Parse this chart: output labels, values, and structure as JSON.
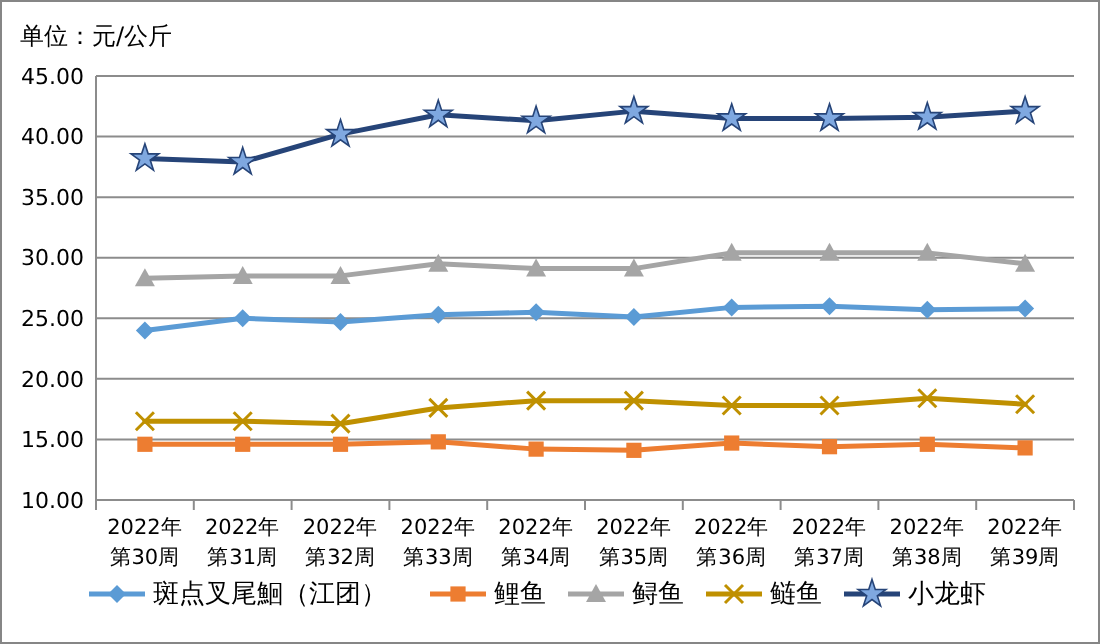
{
  "chart_data": {
    "type": "line",
    "title": "单位：元/公斤",
    "categories": [
      "2022年第30周",
      "2022年第31周",
      "2022年第32周",
      "2022年第33周",
      "2022年第34周",
      "2022年第35周",
      "2022年第36周",
      "2022年第37周",
      "2022年第38周",
      "2022年第39周"
    ],
    "series": [
      {
        "name": "斑点叉尾鮰（江团）",
        "color": "#5b9bd5",
        "marker": "diamond",
        "values": [
          24.0,
          25.0,
          24.7,
          25.3,
          25.5,
          25.1,
          25.9,
          26.0,
          25.7,
          25.8
        ]
      },
      {
        "name": "鲤鱼",
        "color": "#ed7d31",
        "marker": "square",
        "values": [
          14.6,
          14.6,
          14.6,
          14.8,
          14.2,
          14.1,
          14.7,
          14.4,
          14.6,
          14.3
        ]
      },
      {
        "name": "鲟鱼",
        "color": "#a5a5a5",
        "marker": "triangle",
        "values": [
          28.3,
          28.5,
          28.5,
          29.5,
          29.1,
          29.1,
          30.4,
          30.4,
          30.4,
          29.5
        ]
      },
      {
        "name": "鲢鱼",
        "color": "#bf9000",
        "marker": "cross",
        "values": [
          16.5,
          16.5,
          16.3,
          17.6,
          18.2,
          18.2,
          17.8,
          17.8,
          18.4,
          17.9
        ]
      },
      {
        "name": "小龙虾",
        "color": "#264478",
        "marker": "star",
        "values": [
          38.2,
          37.9,
          40.2,
          41.8,
          41.3,
          42.1,
          41.5,
          41.5,
          41.6,
          42.1
        ]
      }
    ],
    "ylim": [
      10,
      45
    ],
    "yticks": [
      {
        "value": 10,
        "label": "10.00"
      },
      {
        "value": 15,
        "label": "15.00"
      },
      {
        "value": 20,
        "label": "20.00"
      },
      {
        "value": 25,
        "label": "25.00"
      },
      {
        "value": 30,
        "label": "30.00"
      },
      {
        "value": 35,
        "label": "35.00"
      },
      {
        "value": 40,
        "label": "40.00"
      },
      {
        "value": 45,
        "label": "45.00"
      }
    ],
    "grid": "y",
    "legend": "bottom",
    "line_style": "solid"
  }
}
